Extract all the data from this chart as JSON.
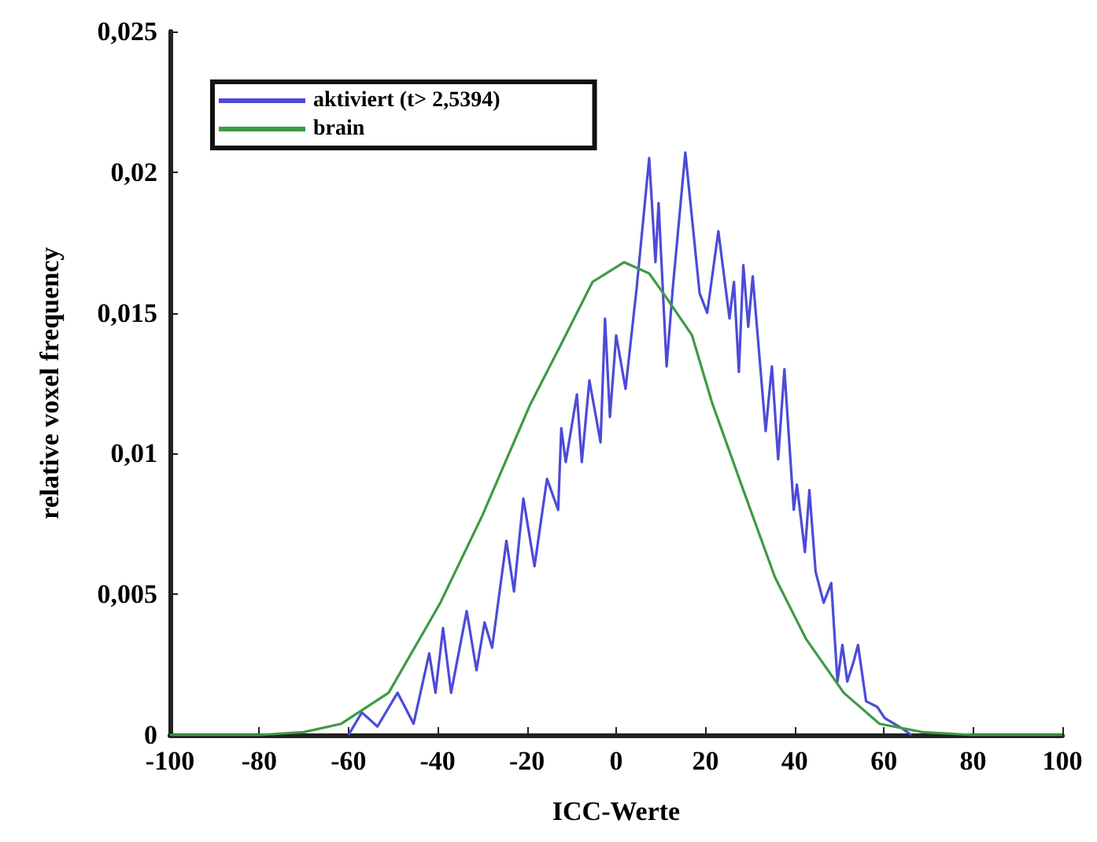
{
  "chart_data": {
    "type": "line",
    "xlabel": "ICC-Werte",
    "ylabel": "relative voxel frequency",
    "xlim": [
      -100,
      100
    ],
    "xticks": [
      -100,
      -80,
      -60,
      -40,
      -20,
      0,
      20,
      40,
      60,
      80,
      100
    ],
    "ylim": [
      0,
      0.025
    ],
    "yticks": [
      0,
      {
        "value": 0.005,
        "label": "0,005"
      },
      {
        "value": 0.01,
        "label": "0,01"
      },
      {
        "value": 0.015,
        "label": "0,015"
      },
      {
        "value": 0.02,
        "label": "0,02"
      },
      {
        "value": 0.025,
        "label": "0,025"
      }
    ],
    "grid": false,
    "legend": "top left",
    "marker": "none",
    "line_style": "solid",
    "series": [
      {
        "name": "aktiviert (t> 2,5394)",
        "color": "#4b4bd8",
        "x": [
          -60,
          -57,
          -53.5,
          -49,
          -45.4,
          -41.9,
          -40.5,
          -38.8,
          -37,
          -33.5,
          -31.3,
          -29.5,
          -27.8,
          -24.6,
          -22.9,
          -20.8,
          -18.3,
          -15.5,
          -13,
          -12.3,
          -11.3,
          -8.8,
          -7.7,
          -6,
          -3.5,
          -2.5,
          -1.4,
          0,
          2.1,
          4.6,
          7.4,
          8.8,
          9.5,
          11.3,
          12.7,
          15.5,
          18.7,
          20.4,
          22.9,
          25.4,
          26.4,
          27.5,
          28.5,
          29.6,
          30.6,
          33.5,
          34.9,
          36.3,
          37.7,
          39.8,
          40.5,
          42.3,
          43.3,
          44.7,
          46.5,
          48.2,
          49.6,
          50.7,
          51.8,
          53.2,
          54.2,
          56,
          58.5,
          60.2,
          63.4,
          66.2
        ],
        "values": [
          0,
          0.0008,
          0.0003,
          0.0015,
          0.0004,
          0.0029,
          0.0015,
          0.0038,
          0.0015,
          0.0044,
          0.0023,
          0.004,
          0.0031,
          0.0069,
          0.0051,
          0.0084,
          0.006,
          0.0091,
          0.008,
          0.0109,
          0.0097,
          0.0121,
          0.0097,
          0.0126,
          0.0104,
          0.0148,
          0.0113,
          0.0142,
          0.0123,
          0.0159,
          0.0205,
          0.0168,
          0.0189,
          0.0131,
          0.0159,
          0.0207,
          0.0157,
          0.015,
          0.0179,
          0.0148,
          0.0161,
          0.0129,
          0.0167,
          0.0145,
          0.0163,
          0.0108,
          0.0131,
          0.0098,
          0.013,
          0.008,
          0.0089,
          0.0065,
          0.0087,
          0.0058,
          0.0047,
          0.0054,
          0.0019,
          0.0032,
          0.0019,
          0.0026,
          0.0032,
          0.0012,
          0.001,
          0.0006,
          0.0003,
          0
        ]
      },
      {
        "name": "brain",
        "color": "#3f9a45",
        "x": [
          -100,
          -80,
          -70,
          -61.6,
          -51,
          -39.4,
          -30,
          -19.4,
          -12.3,
          -5.3,
          1.8,
          7.4,
          11,
          17,
          21.5,
          28.5,
          35.6,
          42.6,
          51,
          59,
          68.7,
          80,
          100
        ],
        "values": [
          0,
          0,
          0.0001,
          0.0004,
          0.0015,
          0.0047,
          0.0078,
          0.0117,
          0.0139,
          0.0161,
          0.0168,
          0.0164,
          0.0156,
          0.0142,
          0.0118,
          0.0087,
          0.0056,
          0.0034,
          0.0015,
          0.0004,
          0.0001,
          0,
          0
        ]
      }
    ]
  }
}
